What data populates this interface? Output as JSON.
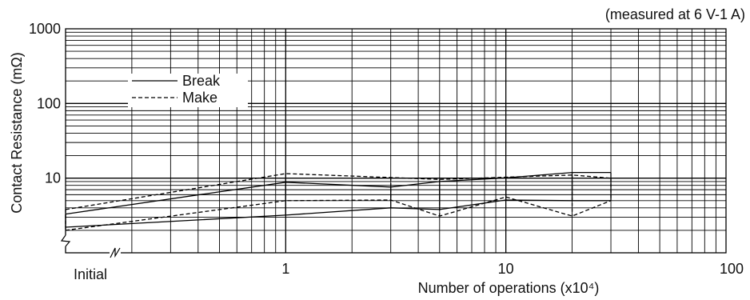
{
  "chart_data": {
    "type": "line",
    "note": "(measured at 6 V-1 A)",
    "xlabel": "Number of operations (x10⁴)",
    "ylabel": "Contact Resistance (mΩ)",
    "x_scale": "log",
    "y_scale": "log",
    "xlim": [
      0.1,
      100
    ],
    "ylim": [
      1,
      1000
    ],
    "grid": true,
    "legend_position": "upper-left",
    "x_tick_labels": [
      {
        "x": 0.1,
        "label": "Initial"
      },
      {
        "x": 1,
        "label": "1"
      },
      {
        "x": 10,
        "label": "10"
      },
      {
        "x": 100,
        "label": "100"
      }
    ],
    "y_tick_labels": [
      {
        "y": 10,
        "label": "10"
      },
      {
        "y": 100,
        "label": "100"
      },
      {
        "y": 1000,
        "label": "1000"
      }
    ],
    "x": [
      0.1,
      1,
      3,
      5,
      10,
      20,
      30
    ],
    "series": [
      {
        "name": "Break",
        "style": "solid",
        "bound": "max",
        "values": [
          3.3,
          8.8,
          7.6,
          9.0,
          10.1,
          11.9,
          11.9
        ]
      },
      {
        "name": "Break",
        "style": "solid",
        "bound": "min",
        "values": [
          2.2,
          3.2,
          4.0,
          3.8,
          5.1,
          5.0,
          5.0
        ]
      },
      {
        "name": "Make",
        "style": "dashed",
        "bound": "max",
        "values": [
          3.8,
          11.5,
          10.2,
          9.6,
          10.3,
          11.0,
          10.0
        ]
      },
      {
        "name": "Make",
        "style": "dashed",
        "bound": "min",
        "values": [
          2.0,
          5.0,
          5.1,
          3.1,
          5.6,
          3.1,
          5.0
        ]
      }
    ],
    "legend": [
      {
        "label": "Break",
        "style": "solid"
      },
      {
        "label": "Make",
        "style": "dashed"
      }
    ]
  }
}
